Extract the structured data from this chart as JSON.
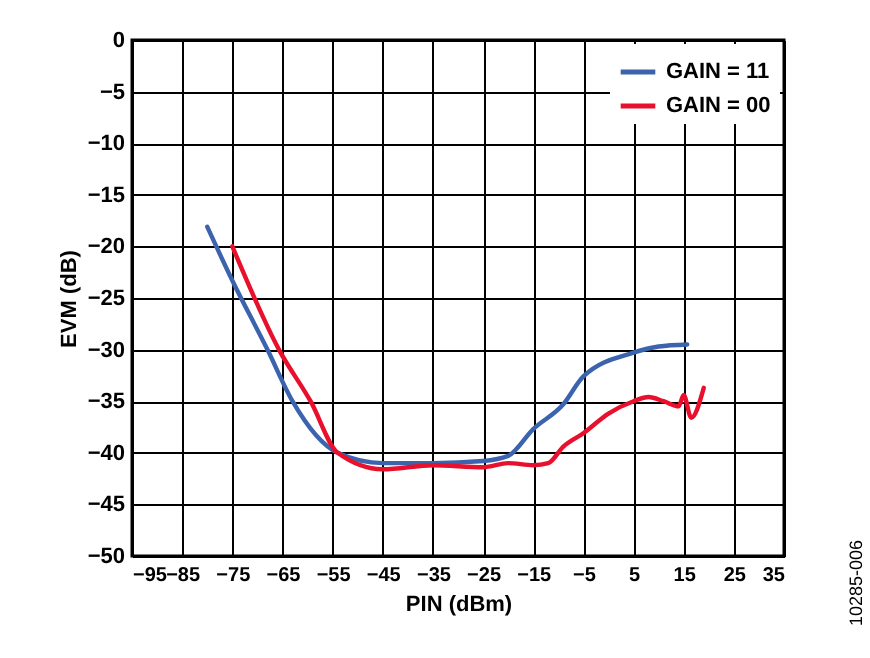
{
  "chart_data": {
    "type": "line",
    "xlabel": "PIN (dBm)",
    "ylabel": "EVM (dB)",
    "x": [
      -80,
      -75,
      -68,
      -63,
      -54,
      -45,
      -35,
      -25,
      -20,
      -15,
      -9,
      -5,
      5,
      10,
      15.7
    ],
    "series": [
      {
        "name": "GAIN = 11",
        "color": "#3c64ae",
        "values": [
          -18.1,
          -23.3,
          -30,
          -35,
          -40,
          -41,
          -41,
          -40.8,
          -40.3,
          -37.7,
          -35.3,
          -32.6,
          -30.3,
          -29.7,
          -29.5
        ]
      },
      {
        "name": "GAIN = 00",
        "color": "#e8102c",
        "x": [
          -75,
          -65.7,
          -59.4,
          -54,
          -45,
          -35,
          -25,
          -20,
          -15,
          -12,
          -9,
          -5,
          0,
          5,
          8,
          11,
          14,
          15,
          16.5,
          19
        ],
        "values": [
          -20,
          -30,
          -35,
          -40,
          -41.6,
          -41.2,
          -41.4,
          -41,
          -41.2,
          -41,
          -39.4,
          -38.1,
          -36.2,
          -35,
          -34.6,
          -35,
          -35.5,
          -34.4,
          -36.6,
          -33.7
        ]
      }
    ],
    "xlim": [
      -95,
      35
    ],
    "xticks": [
      -95,
      -85,
      -75,
      -65,
      -55,
      -45,
      -35,
      -25,
      -15,
      -5,
      5,
      15,
      25,
      35
    ],
    "ylim": [
      -50,
      0
    ],
    "yticks": [
      -50,
      -45,
      -40,
      -35,
      -30,
      -25,
      -20,
      -15,
      -10,
      -5,
      0
    ],
    "grid": true,
    "legend": "top right",
    "line_style": "solid",
    "annotations": [
      "10285-006"
    ]
  }
}
